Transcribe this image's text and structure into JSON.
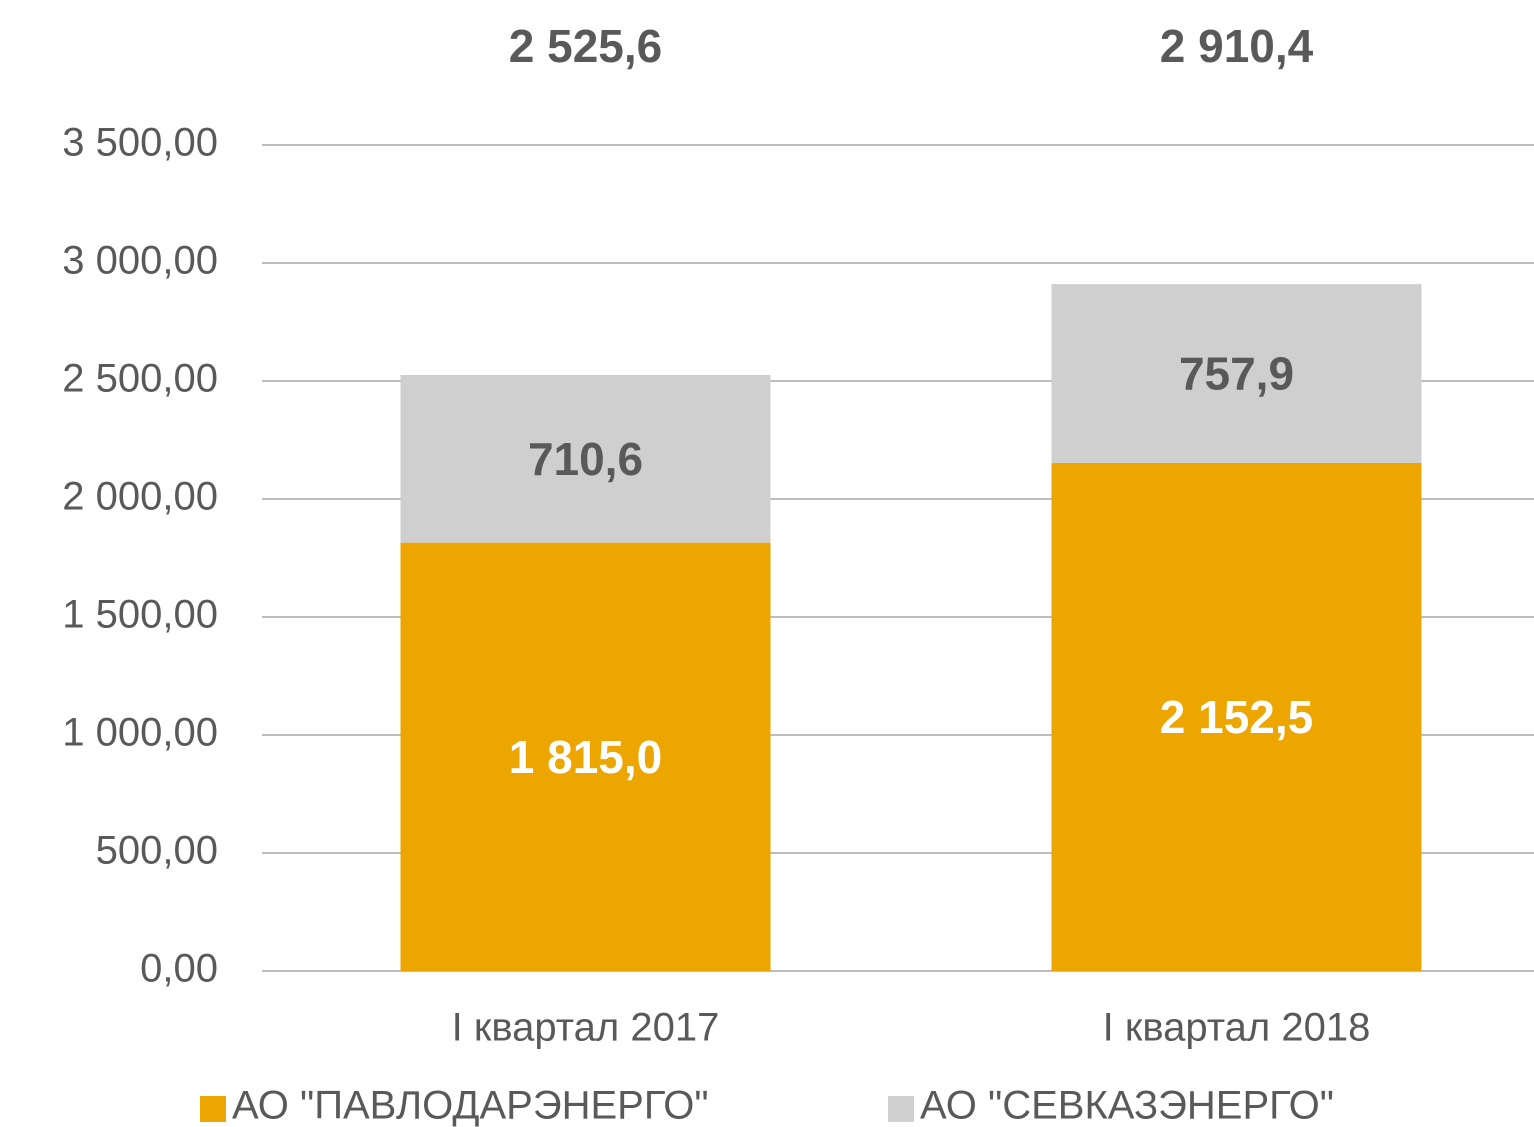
{
  "chart_data": {
    "type": "stacked_bar",
    "categories": [
      "I квартал 2017",
      "I квартал 2018"
    ],
    "series": [
      {
        "name": "АО \"ПАВЛОДАРЭНЕРГО\"",
        "color": "#eda500",
        "values": [
          1815.0,
          2152.5
        ],
        "value_labels": [
          "1 815,0",
          "2 152,5"
        ],
        "label_color": "#ffffff"
      },
      {
        "name": "АО \"СЕВКАЗЭНЕРГО\"",
        "color": "#d0cfcf",
        "values": [
          710.6,
          757.9
        ],
        "value_labels": [
          "710,6",
          "757,9"
        ],
        "label_color": "#595959"
      }
    ],
    "totals": [
      2525.6,
      2910.4
    ],
    "total_labels": [
      "2 525,6",
      "2 910,4"
    ],
    "ylim": [
      0,
      3500
    ],
    "yticks": [
      {
        "value": 0,
        "label": "0,00"
      },
      {
        "value": 500,
        "label": "500,00"
      },
      {
        "value": 1000,
        "label": "1 000,00"
      },
      {
        "value": 1500,
        "label": "1 500,00"
      },
      {
        "value": 2000,
        "label": "2 000,00"
      },
      {
        "value": 2500,
        "label": "2 500,00"
      },
      {
        "value": 3000,
        "label": "3 000,00"
      },
      {
        "value": 3500,
        "label": "3 500,00"
      }
    ],
    "grid": true,
    "legend": "bottom"
  }
}
